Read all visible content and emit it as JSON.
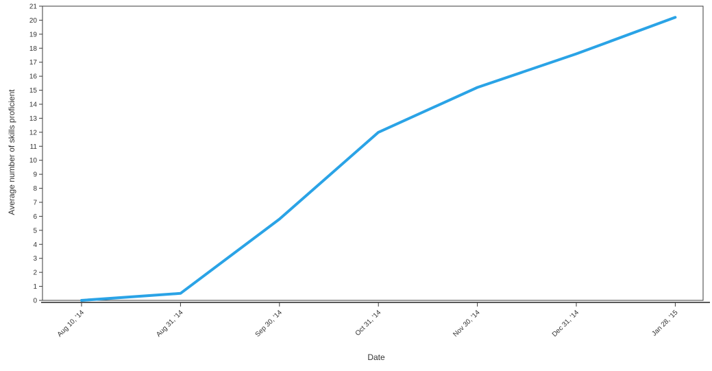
{
  "chart_data": {
    "type": "line",
    "title": "",
    "xlabel": "Date",
    "ylabel": "Average number of skills proficient",
    "x": [
      "Aug 10, '14",
      "Aug 31, '14",
      "Sep 30, '14",
      "Oct 31, '14",
      "Nov 30, '14",
      "Dec 31, '14",
      "Jan 28, '15"
    ],
    "series": [
      {
        "values": [
          0,
          0.5,
          5.8,
          12,
          15.2,
          17.6,
          20.2
        ],
        "color": "#2aa3e6"
      }
    ],
    "ylim": [
      0,
      21
    ],
    "yticks": [
      0,
      1,
      2,
      3,
      4,
      5,
      6,
      7,
      8,
      9,
      10,
      11,
      12,
      13,
      14,
      15,
      16,
      17,
      18,
      19,
      20,
      21
    ],
    "grid": false,
    "legend": "none"
  }
}
